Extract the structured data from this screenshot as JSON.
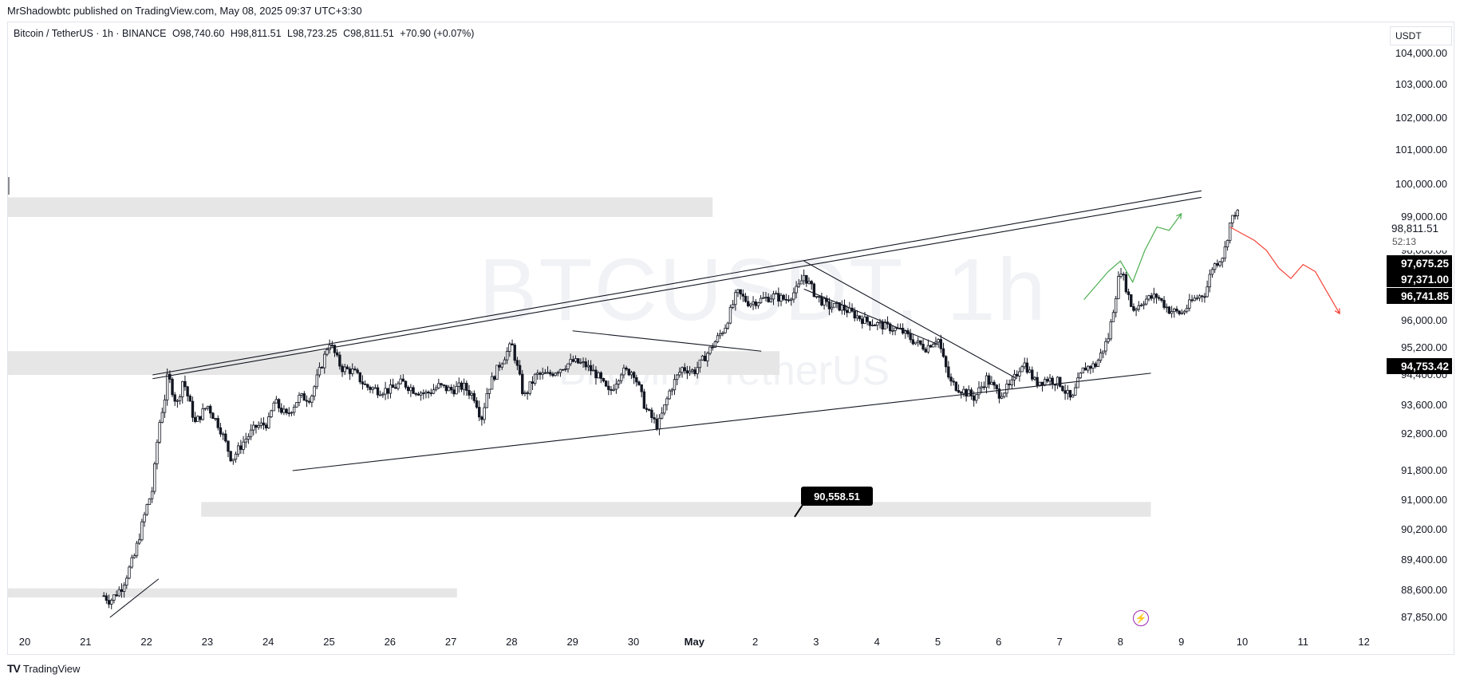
{
  "header": {
    "credit": "MrShadowbtc published on TradingView.com, May 08, 2025 09:37 UTC+3:30",
    "symbol": "Bitcoin / TetherUS · 1h · BINANCE",
    "open": "O98,740.60",
    "high": "H98,811.51",
    "low": "L98,723.25",
    "close": "C98,811.51",
    "change": "+70.90 (+0.07%)"
  },
  "watermark": {
    "line1": "BTCUSDT, 1h",
    "line2": "Bitcoin / TetherUS"
  },
  "currency_label": "USDT",
  "footer": {
    "brand": "TradingView",
    "logo_glyph": "TV"
  },
  "icons": {
    "bolt": "lightning-icon"
  },
  "colors": {
    "up_path": "#4caf50",
    "down_path": "#f44336",
    "candle": "#131722",
    "zone": "#e6e6e6",
    "last_price_bg": "#000000"
  },
  "chart_data": {
    "type": "candlestick",
    "timeframe": "1h",
    "x_ticks": [
      "20",
      "21",
      "22",
      "23",
      "24",
      "25",
      "26",
      "27",
      "28",
      "29",
      "30",
      "May",
      "2",
      "3",
      "4",
      "5",
      "6",
      "7",
      "8",
      "9",
      "10",
      "11",
      "12"
    ],
    "y_ticks": [
      104000,
      103000,
      102000,
      101000,
      100000,
      99000,
      98000,
      96000,
      95200,
      94400,
      93600,
      92800,
      91800,
      91000,
      90200,
      89400,
      88600,
      87850
    ],
    "y_tick_labels": [
      "104,000.00",
      "103,000.00",
      "102,000.00",
      "101,000.00",
      "100,000.00",
      "99,000.00",
      "98,000.00",
      "96,000.00",
      "95,200.00",
      "94,400.00",
      "93,600.00",
      "92,800.00",
      "91,800.00",
      "91,000.00",
      "90,200.00",
      "89,400.00",
      "88,600.00",
      "87,850.00"
    ],
    "price_labels": [
      {
        "text": "98,811.51",
        "sub": "52:13",
        "style": "current"
      },
      {
        "text": "97,675.25",
        "style": "filled"
      },
      {
        "text": "97,371.00",
        "style": "filled"
      },
      {
        "text": "96,741.85",
        "style": "filled"
      },
      {
        "text": "94,753.42",
        "style": "filled"
      }
    ],
    "annotation": {
      "text": "90,558.51"
    },
    "price_path": [
      [
        0,
        87700
      ],
      [
        0.3,
        87900
      ],
      [
        0.6,
        88200
      ],
      [
        0.9,
        88300
      ],
      [
        1.0,
        88000
      ],
      [
        1.2,
        88600
      ],
      [
        1.4,
        88300
      ],
      [
        1.6,
        88700
      ],
      [
        1.8,
        89500
      ],
      [
        2.0,
        90800
      ],
      [
        2.1,
        91300
      ],
      [
        2.2,
        93000
      ],
      [
        2.3,
        93800
      ],
      [
        2.35,
        94400
      ],
      [
        2.5,
        93600
      ],
      [
        2.6,
        94300
      ],
      [
        2.8,
        93100
      ],
      [
        3.0,
        93600
      ],
      [
        3.2,
        93000
      ],
      [
        3.4,
        92100
      ],
      [
        3.6,
        92600
      ],
      [
        3.8,
        93000
      ],
      [
        4.0,
        93100
      ],
      [
        4.1,
        93700
      ],
      [
        4.3,
        93300
      ],
      [
        4.5,
        93800
      ],
      [
        4.7,
        93800
      ],
      [
        4.9,
        94800
      ],
      [
        5.0,
        95400
      ],
      [
        5.2,
        94600
      ],
      [
        5.4,
        94500
      ],
      [
        5.6,
        94100
      ],
      [
        5.8,
        94000
      ],
      [
        6.0,
        94000
      ],
      [
        6.2,
        94200
      ],
      [
        6.4,
        94000
      ],
      [
        6.6,
        93900
      ],
      [
        6.8,
        94100
      ],
      [
        7.0,
        94000
      ],
      [
        7.2,
        94100
      ],
      [
        7.4,
        93800
      ],
      [
        7.5,
        93200
      ],
      [
        7.6,
        94000
      ],
      [
        7.8,
        94700
      ],
      [
        8.0,
        95300
      ],
      [
        8.2,
        93800
      ],
      [
        8.4,
        94400
      ],
      [
        8.6,
        94400
      ],
      [
        8.8,
        94600
      ],
      [
        9.0,
        94800
      ],
      [
        9.2,
        94700
      ],
      [
        9.4,
        94400
      ],
      [
        9.6,
        93900
      ],
      [
        9.8,
        94500
      ],
      [
        10.0,
        94500
      ],
      [
        10.2,
        93500
      ],
      [
        10.4,
        93000
      ],
      [
        10.6,
        94000
      ],
      [
        10.8,
        94600
      ],
      [
        11.0,
        94500
      ],
      [
        11.2,
        95000
      ],
      [
        11.5,
        95800
      ],
      [
        11.7,
        96800
      ],
      [
        11.9,
        96500
      ],
      [
        12.1,
        96600
      ],
      [
        12.3,
        96700
      ],
      [
        12.5,
        96600
      ],
      [
        12.7,
        96900
      ],
      [
        12.8,
        97300
      ],
      [
        13.0,
        96700
      ],
      [
        13.2,
        96400
      ],
      [
        13.4,
        96400
      ],
      [
        13.6,
        96200
      ],
      [
        13.8,
        96000
      ],
      [
        14.0,
        95900
      ],
      [
        14.2,
        95800
      ],
      [
        14.4,
        95700
      ],
      [
        14.6,
        95400
      ],
      [
        14.8,
        95200
      ],
      [
        15.0,
        95500
      ],
      [
        15.1,
        94800
      ],
      [
        15.2,
        94200
      ],
      [
        15.4,
        94000
      ],
      [
        15.6,
        93800
      ],
      [
        15.8,
        94300
      ],
      [
        16.0,
        93900
      ],
      [
        16.2,
        94100
      ],
      [
        16.4,
        94800
      ],
      [
        16.6,
        94200
      ],
      [
        16.8,
        94300
      ],
      [
        17.0,
        94200
      ],
      [
        17.2,
        93700
      ],
      [
        17.3,
        94200
      ],
      [
        17.4,
        94600
      ],
      [
        17.6,
        94700
      ],
      [
        17.8,
        95500
      ],
      [
        17.9,
        96500
      ],
      [
        18.0,
        97500
      ],
      [
        18.2,
        96300
      ],
      [
        18.4,
        96600
      ],
      [
        18.6,
        96700
      ],
      [
        18.8,
        96300
      ],
      [
        19.0,
        96200
      ],
      [
        19.2,
        96600
      ],
      [
        19.4,
        96800
      ],
      [
        19.5,
        97500
      ],
      [
        19.7,
        97900
      ],
      [
        19.8,
        98800
      ],
      [
        19.9,
        99200
      ],
      [
        20.0,
        98800
      ]
    ],
    "trendlines": [
      {
        "from": [
          2.1,
          94400
        ],
        "to": [
          19.33,
          99800
        ],
        "role": "upper channel"
      },
      {
        "from": [
          2.1,
          94300
        ],
        "to": [
          19.33,
          99600
        ],
        "role": "upper channel inner"
      },
      {
        "from": [
          4.4,
          91800
        ],
        "to": [
          18.5,
          94450
        ],
        "role": "lower channel"
      },
      {
        "from": [
          9.0,
          95700
        ],
        "to": [
          12.1,
          95100
        ],
        "role": "triangle top"
      },
      {
        "from": [
          12.8,
          97700
        ],
        "to": [
          16.3,
          94300
        ],
        "role": "descending line"
      },
      {
        "from": [
          12.8,
          96900
        ],
        "to": [
          15.0,
          95300
        ],
        "role": "descending inner"
      },
      {
        "from": [
          1.4,
          87850
        ],
        "to": [
          2.2,
          88900
        ],
        "role": "small trend"
      }
    ],
    "zones": [
      {
        "from_x": -0.3,
        "to_x": 11.3,
        "top": 99600,
        "bottom": 99000
      },
      {
        "from_x": -0.3,
        "to_x": 12.4,
        "top": 95100,
        "bottom": 94400
      },
      {
        "from_x": 2.9,
        "to_x": 18.5,
        "top": 90950,
        "bottom": 90550
      },
      {
        "from_x": -0.3,
        "to_x": 7.1,
        "top": 88650,
        "bottom": 88400
      }
    ],
    "projections": [
      {
        "color": "green",
        "points": [
          [
            17.4,
            96600
          ],
          [
            17.6,
            97000
          ],
          [
            17.8,
            97400
          ],
          [
            18.0,
            97700
          ],
          [
            18.2,
            97100
          ],
          [
            18.4,
            98000
          ],
          [
            18.6,
            98700
          ],
          [
            18.8,
            98600
          ],
          [
            19.0,
            99100
          ]
        ]
      },
      {
        "color": "red",
        "points": [
          [
            19.8,
            98700
          ],
          [
            20.0,
            98500
          ],
          [
            20.2,
            98300
          ],
          [
            20.4,
            98000
          ],
          [
            20.6,
            97500
          ],
          [
            20.8,
            97200
          ],
          [
            21.0,
            97600
          ],
          [
            21.2,
            97400
          ],
          [
            21.4,
            96800
          ],
          [
            21.6,
            96200
          ]
        ]
      }
    ]
  }
}
